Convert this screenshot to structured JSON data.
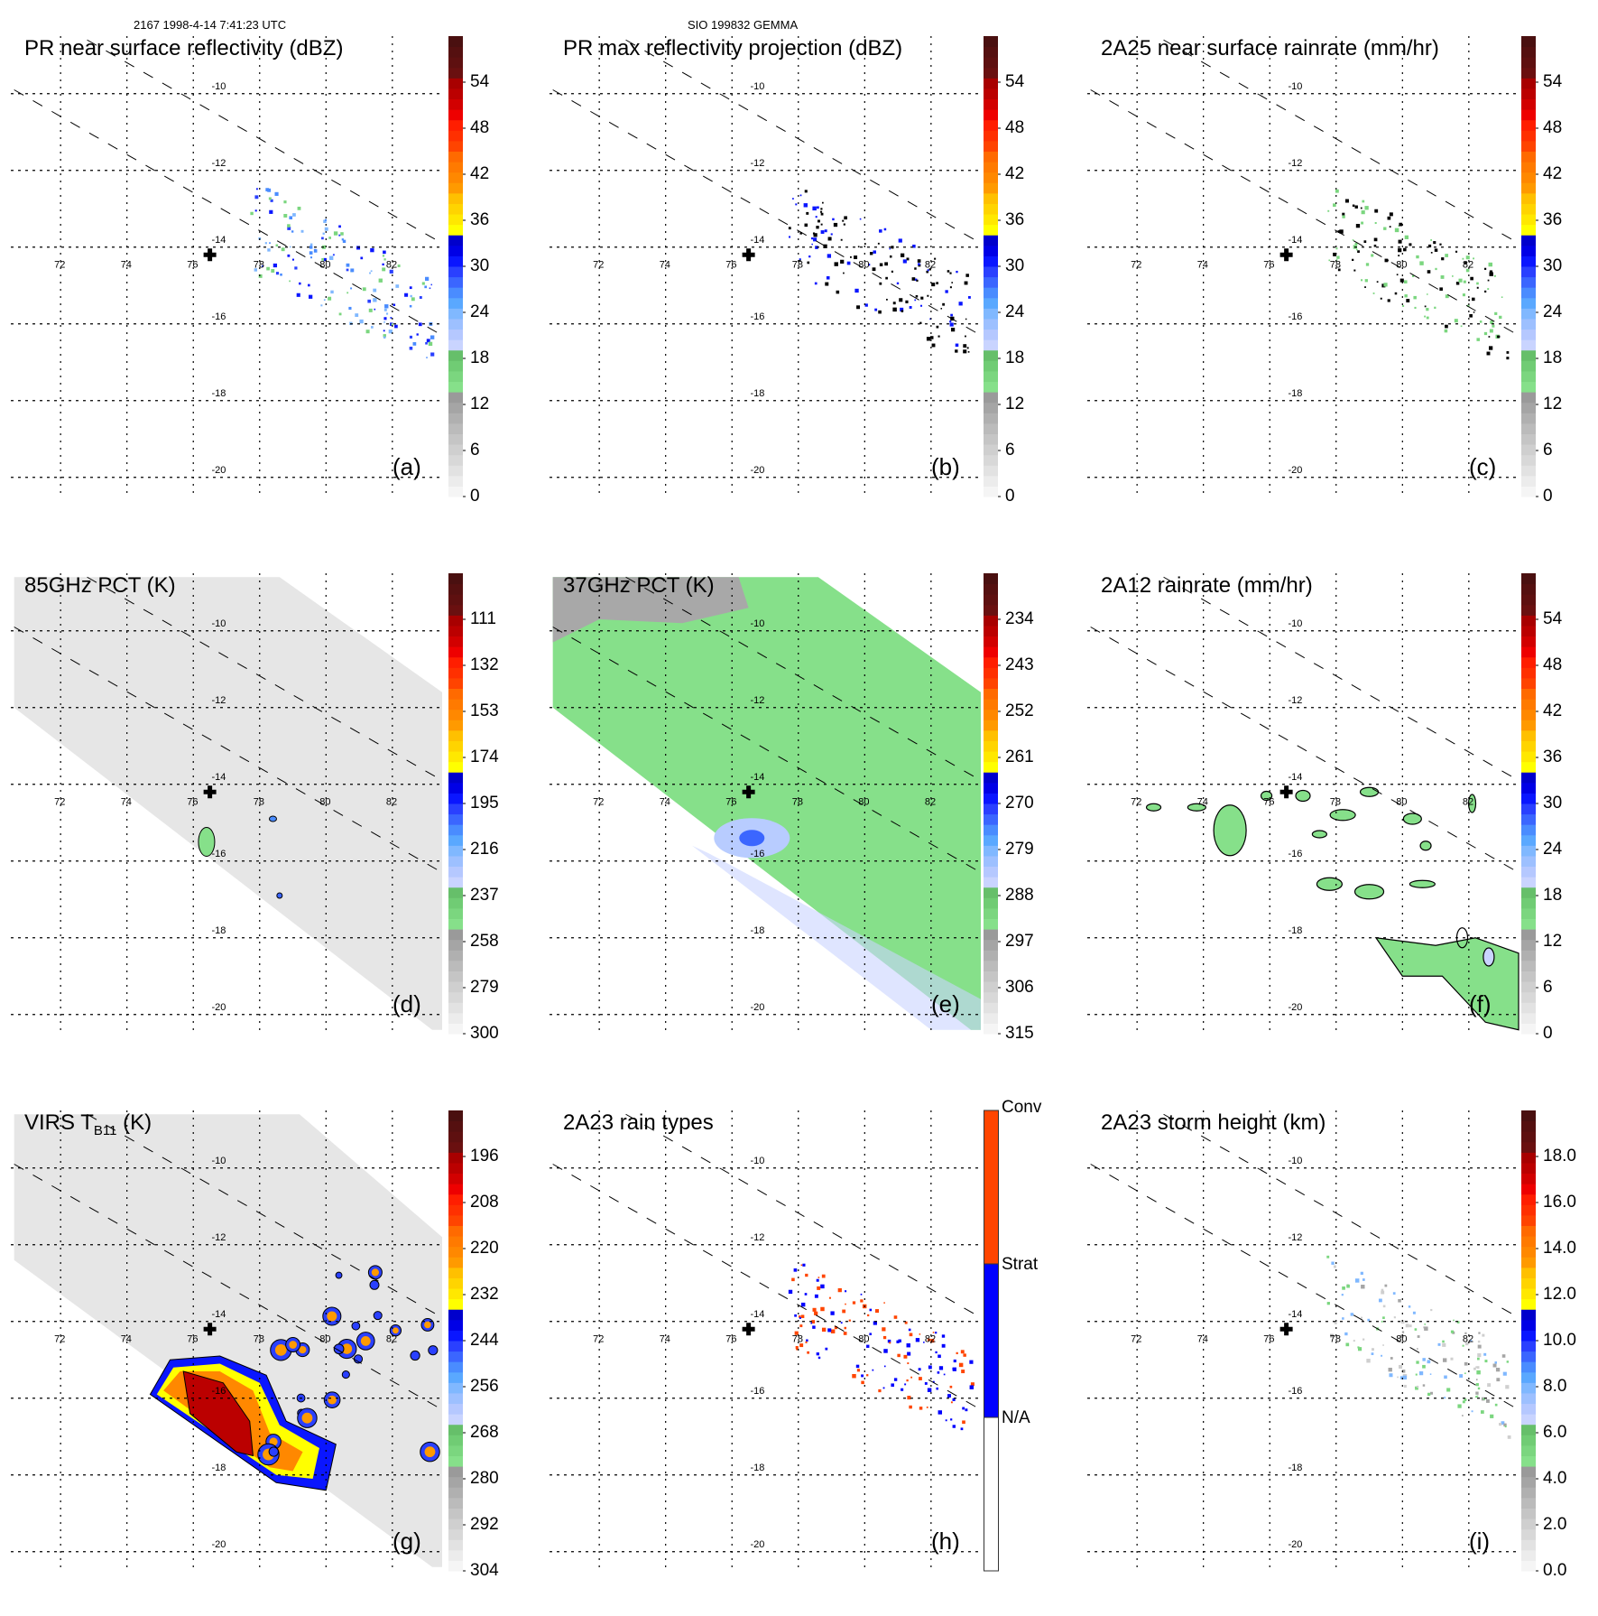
{
  "header": {
    "left": "2167 1998-4-14 7:41:23 UTC",
    "center": "SIO 199832 GEMMA"
  },
  "colors": {
    "rainbow_ramp": [
      "#f5f5f5",
      "#ececec",
      "#e2e2e2",
      "#d8d8d8",
      "#cfcfcf",
      "#c5c5c5",
      "#bbbbbb",
      "#b0b0b0",
      "#a5a5a5",
      "#9a9a9a",
      "#86e08a",
      "#7bd67f",
      "#70cc74",
      "#66bf6a",
      "#c9d4ff",
      "#b5c8ff",
      "#9dc0ff",
      "#80b8ff",
      "#5aa8ff",
      "#4a8cff",
      "#3b66ff",
      "#2a40ff",
      "#0a16ff",
      "#0000e6",
      "#0000cc",
      "#ffff00",
      "#ffe800",
      "#ffd400",
      "#ffc000",
      "#ff9a00",
      "#ff8800",
      "#ff7a00",
      "#ff6a00",
      "#ff4400",
      "#ff3000",
      "#ff1e00",
      "#ee0000",
      "#d20000",
      "#bb0000",
      "#a80000",
      "#6a1010",
      "#5e1010",
      "#551010",
      "#4a1010"
    ],
    "rain_type_conv": "#ff4500",
    "rain_type_strat": "#0000ff",
    "rain_type_na": "#ffffff",
    "green_fill": "#86e08a",
    "gray_swath": "#e6e6e6",
    "gray_swath_37": "#a8a8a8"
  },
  "chart_data": [
    {
      "id": "a",
      "panel_label": "(a)",
      "type": "heatmap",
      "title": "PR near surface reflectivity (dBZ)",
      "colorbar": {
        "ticks": [
          "0",
          "6",
          "12",
          "18",
          "24",
          "30",
          "36",
          "42",
          "48",
          "54"
        ],
        "range": [
          0,
          60
        ]
      },
      "x_ticks": [
        "72",
        "74",
        "76",
        "78",
        "80",
        "82"
      ],
      "y_ticks": [
        "-10",
        "-12",
        "-14",
        "-16",
        "-18",
        "-20"
      ],
      "xlim": [
        70.5,
        83.5
      ],
      "ylim": [
        -20.5,
        -8.5
      ],
      "swath": "pr",
      "center_marker": {
        "lon": 76.5,
        "lat": -14.2
      },
      "features": "scattered small echoes 18-36 dBZ along PR swath near 78-83E, 13-15.5S"
    },
    {
      "id": "b",
      "panel_label": "(b)",
      "type": "heatmap",
      "title": "PR max reflectivity projection (dBZ)",
      "colorbar": {
        "ticks": [
          "0",
          "6",
          "12",
          "18",
          "24",
          "30",
          "36",
          "42",
          "48",
          "54"
        ],
        "range": [
          0,
          60
        ]
      },
      "x_ticks": [
        "72",
        "74",
        "76",
        "78",
        "80",
        "82"
      ],
      "y_ticks": [
        "-10",
        "-12",
        "-14",
        "-16",
        "-18",
        "-20"
      ],
      "xlim": [
        70.5,
        83.5
      ],
      "ylim": [
        -20.5,
        -8.5
      ],
      "swath": "pr",
      "center_marker": {
        "lon": 76.5,
        "lat": -14.2
      },
      "features": "contoured small cells along PR swath near 78-83E"
    },
    {
      "id": "c",
      "panel_label": "(c)",
      "type": "heatmap",
      "title": "2A25 near surface rainrate (mm/hr)",
      "colorbar": {
        "ticks": [
          "0",
          "6",
          "12",
          "18",
          "24",
          "30",
          "36",
          "42",
          "48",
          "54"
        ],
        "range": [
          0,
          60
        ]
      },
      "x_ticks": [
        "72",
        "74",
        "76",
        "78",
        "80",
        "82"
      ],
      "y_ticks": [
        "-10",
        "-12",
        "-14",
        "-16",
        "-18",
        "-20"
      ],
      "xlim": [
        70.5,
        83.5
      ],
      "ylim": [
        -20.5,
        -8.5
      ],
      "swath": "pr",
      "center_marker": {
        "lon": 76.5,
        "lat": -14.2
      },
      "features": "light rain cells 0-6 mm/hr contoured along PR swath"
    },
    {
      "id": "d",
      "panel_label": "(d)",
      "type": "heatmap",
      "title": "85GHz PCT (K)",
      "colorbar": {
        "ticks": [
          "300",
          "279",
          "258",
          "237",
          "216",
          "195",
          "174",
          "153",
          "132",
          "111"
        ],
        "range": [
          300,
          90
        ]
      },
      "x_ticks": [
        "72",
        "74",
        "76",
        "78",
        "80",
        "82"
      ],
      "y_ticks": [
        "-10",
        "-12",
        "-14",
        "-16",
        "-18",
        "-20"
      ],
      "xlim": [
        70.5,
        83.5
      ],
      "ylim": [
        -20.5,
        -8.5
      ],
      "swath": "tmi",
      "center_marker": {
        "lon": 76.5,
        "lat": -14.2
      },
      "features": "mostly 280-300 K; depression ~220-240 K near 76.5E 15.5S"
    },
    {
      "id": "e",
      "panel_label": "(e)",
      "type": "heatmap",
      "title": "37GHz PCT (K)",
      "colorbar": {
        "ticks": [
          "315",
          "306",
          "297",
          "288",
          "279",
          "270",
          "261",
          "252",
          "243",
          "234"
        ],
        "range": [
          315,
          225
        ]
      },
      "x_ticks": [
        "72",
        "74",
        "76",
        "78",
        "80",
        "82"
      ],
      "y_ticks": [
        "-10",
        "-12",
        "-14",
        "-16",
        "-18",
        "-20"
      ],
      "xlim": [
        70.5,
        83.5
      ],
      "ylim": [
        -20.5,
        -8.5
      ],
      "swath": "tmi",
      "center_marker": {
        "lon": 76.5,
        "lat": -14.2
      },
      "features": "mostly 282-290 K; 290-300 K NW corner; 270-280 K near 76.5E 15.5S"
    },
    {
      "id": "f",
      "panel_label": "(f)",
      "type": "heatmap",
      "title": "2A12 rainrate (mm/hr)",
      "colorbar": {
        "ticks": [
          "0",
          "6",
          "12",
          "18",
          "24",
          "30",
          "36",
          "42",
          "48",
          "54"
        ],
        "range": [
          0,
          60
        ]
      },
      "x_ticks": [
        "72",
        "74",
        "76",
        "78",
        "80",
        "82"
      ],
      "y_ticks": [
        "-10",
        "-12",
        "-14",
        "-16",
        "-18",
        "-20"
      ],
      "xlim": [
        70.5,
        83.5
      ],
      "ylim": [
        -20.5,
        -8.5
      ],
      "swath": "pr",
      "center_marker": {
        "lon": 76.5,
        "lat": -14.2
      },
      "features": "light rain 0-6 mm/hr patches 74-83E, band near 18-20S"
    },
    {
      "id": "g",
      "panel_label": "(g)",
      "type": "heatmap",
      "title": "VIRS T",
      "title_sub": "B11",
      "title_suffix": " (K)",
      "colorbar": {
        "ticks": [
          "304",
          "292",
          "280",
          "268",
          "256",
          "244",
          "232",
          "220",
          "208",
          "196"
        ],
        "range": [
          304,
          184
        ]
      },
      "x_ticks": [
        "72",
        "74",
        "76",
        "78",
        "80",
        "82"
      ],
      "y_ticks": [
        "-10",
        "-12",
        "-14",
        "-16",
        "-18",
        "-20"
      ],
      "xlim": [
        70.5,
        83.5
      ],
      "ylim": [
        -20.5,
        -8.5
      ],
      "swath": "virs",
      "center_marker": {
        "lon": 76.5,
        "lat": -14.2
      },
      "features": "cold cloud core ~200 K near 76-77.5E 15-17S; scattered 220-260 K cells to east"
    },
    {
      "id": "h",
      "panel_label": "(h)",
      "type": "heatmap",
      "title": "2A23 rain types",
      "colorbar": {
        "categories": [
          "N/A",
          "Strat",
          "Conv"
        ]
      },
      "x_ticks": [
        "72",
        "74",
        "76",
        "78",
        "80",
        "82"
      ],
      "y_ticks": [
        "-10",
        "-12",
        "-14",
        "-16",
        "-18",
        "-20"
      ],
      "xlim": [
        70.5,
        83.5
      ],
      "ylim": [
        -20.5,
        -8.5
      ],
      "swath": "pr",
      "center_marker": {
        "lon": 76.5,
        "lat": -14.2
      },
      "features": "mixed conv/strat pixels along PR swath 76-83E"
    },
    {
      "id": "i",
      "panel_label": "(i)",
      "type": "heatmap",
      "title": "2A23 storm height (km)",
      "colorbar": {
        "ticks": [
          "0.0",
          "2.0",
          "4.0",
          "6.0",
          "8.0",
          "10.0",
          "12.0",
          "14.0",
          "16.0",
          "18.0"
        ],
        "range": [
          0,
          20
        ]
      },
      "x_ticks": [
        "72",
        "74",
        "76",
        "78",
        "80",
        "82"
      ],
      "y_ticks": [
        "-10",
        "-12",
        "-14",
        "-16",
        "-18",
        "-20"
      ],
      "xlim": [
        70.5,
        83.5
      ],
      "ylim": [
        -20.5,
        -8.5
      ],
      "swath": "pr",
      "center_marker": {
        "lon": 76.5,
        "lat": -14.2
      },
      "features": "storm heights mostly 2-5 km, few 6-9 km"
    }
  ]
}
